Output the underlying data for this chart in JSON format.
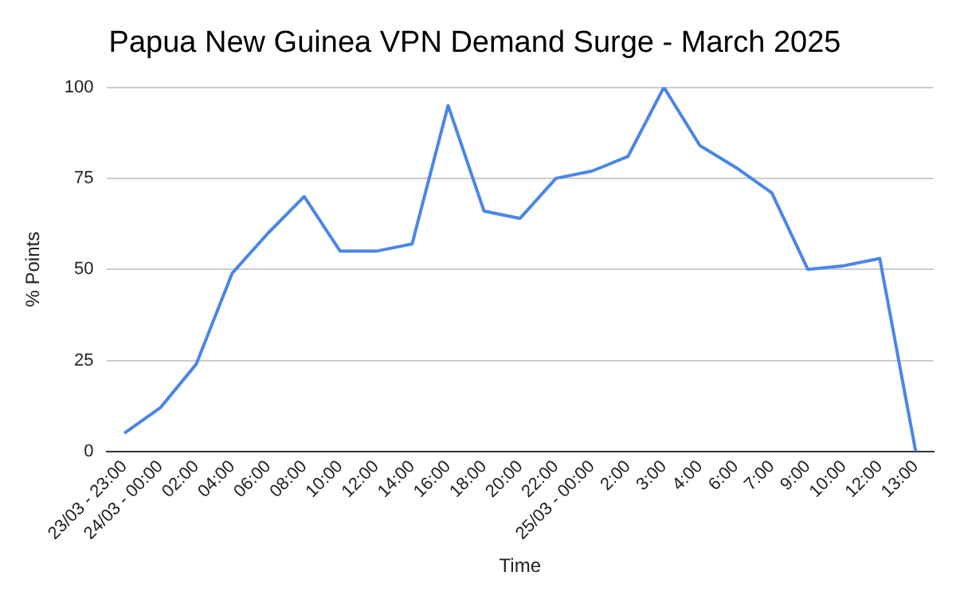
{
  "chart_data": {
    "type": "line",
    "title": "Papua New Guinea VPN Demand Surge - March 2025",
    "xlabel": "Time",
    "ylabel": "% Points",
    "categories": [
      "23/03 - 23:00",
      "24/03 - 00:00",
      "02:00",
      "04:00",
      "06:00",
      "08:00",
      "10:00",
      "12:00",
      "14:00",
      "16:00",
      "18:00",
      "20:00",
      "22:00",
      "25/03 - 00:00",
      "2:00",
      "3:00",
      "4:00",
      "6:00",
      "7:00",
      "9:00",
      "10:00",
      "12:00",
      "13:00"
    ],
    "series": [
      {
        "color": "#4a86e8",
        "values": [
          5,
          12,
          24,
          49,
          60,
          70,
          55,
          55,
          57,
          95,
          66,
          64,
          75,
          77,
          81,
          100,
          84,
          78,
          71,
          50,
          51,
          53,
          0
        ]
      }
    ],
    "ylim": [
      0,
      100
    ],
    "yticks": [
      0,
      25,
      50,
      75,
      100
    ],
    "grid": "y",
    "legend": false,
    "marker": "none",
    "line_style": "solid"
  }
}
